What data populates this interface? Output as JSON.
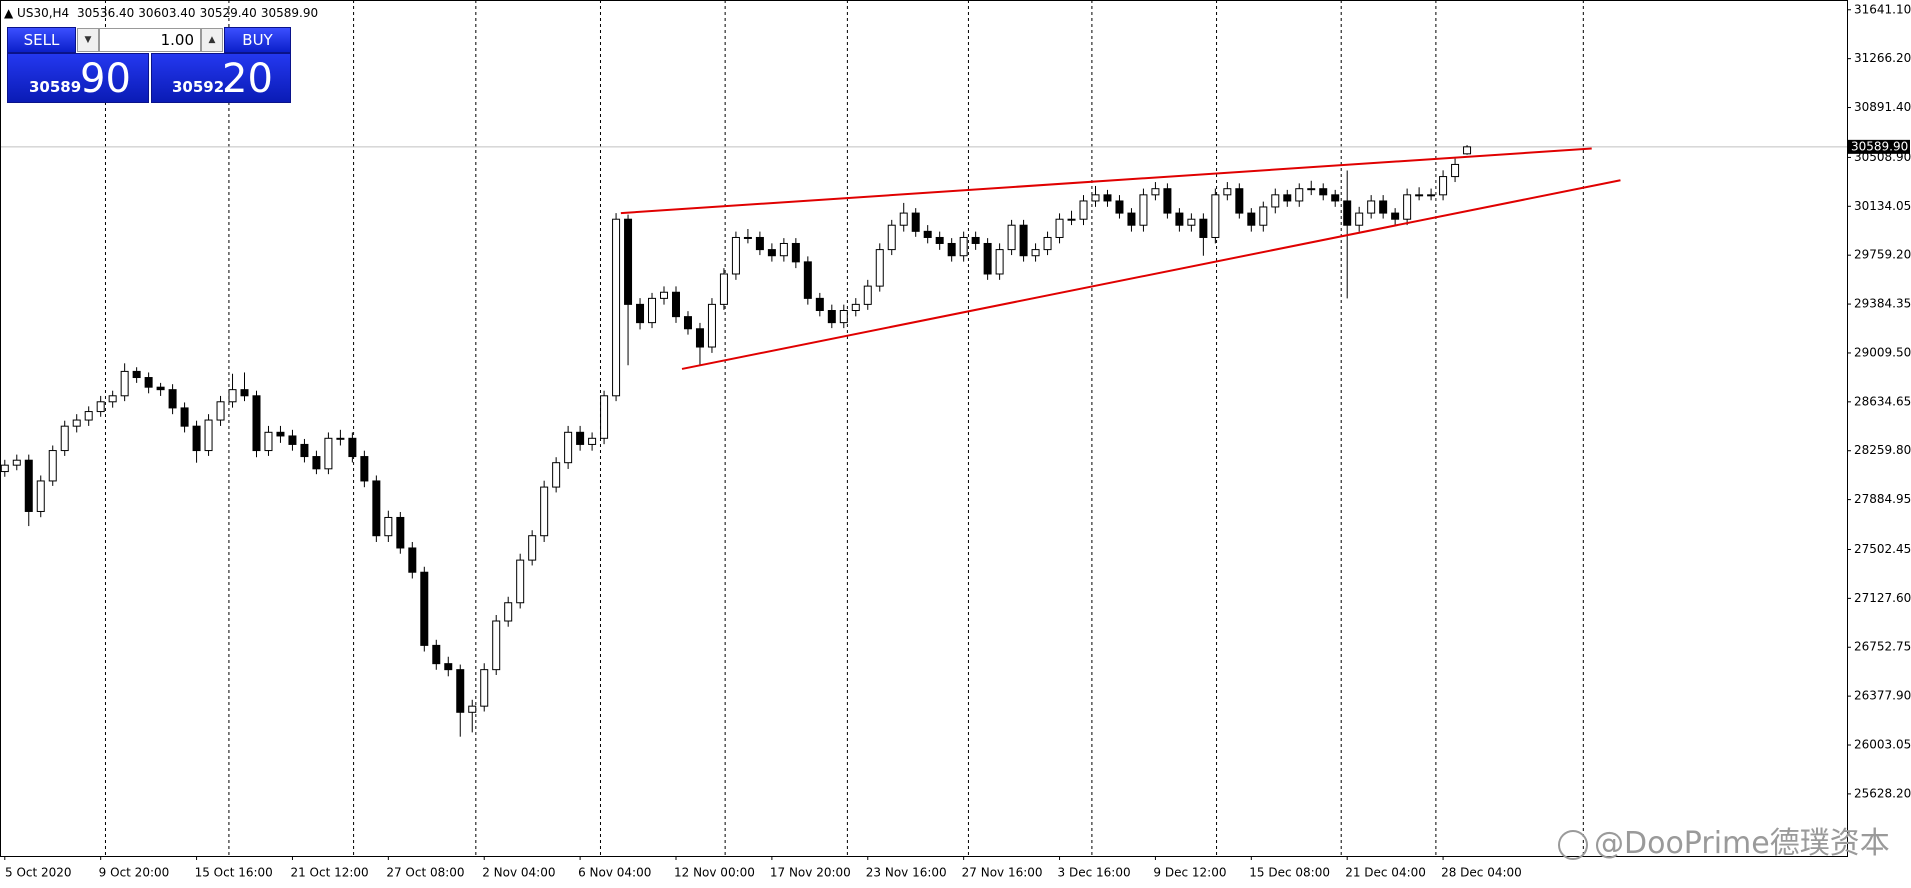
{
  "chart_data": {
    "type": "candlestick",
    "header": {
      "symbol": "US30,H4",
      "ohlc": [
        "30536.40",
        "30603.40",
        "30529.40",
        "30589.90"
      ]
    },
    "trade_panel": {
      "sell": "SELL",
      "buy": "BUY",
      "volume": "1.00",
      "bid_main": "30589",
      "bid_pips": "90",
      "ask_main": "30592",
      "ask_pips": "20"
    },
    "watermark": "@DooPrime德璞资本",
    "up_color": "#ffffff",
    "down_color": "#000000",
    "outline_color": "#000000",
    "categories": [
      "5 Oct 2020",
      null,
      null,
      null,
      null,
      null,
      null,
      null,
      "9 Oct 20:00",
      null,
      null,
      null,
      null,
      null,
      null,
      null,
      "15 Oct 16:00",
      null,
      null,
      null,
      null,
      null,
      null,
      null,
      "21 Oct 12:00",
      null,
      null,
      null,
      null,
      null,
      null,
      null,
      "27 Oct 08:00",
      null,
      null,
      null,
      null,
      null,
      null,
      null,
      "2 Nov 04:00",
      null,
      null,
      null,
      null,
      null,
      null,
      null,
      "6 Nov 04:00",
      null,
      null,
      null,
      null,
      null,
      null,
      null,
      "12 Nov 00:00",
      null,
      null,
      null,
      null,
      null,
      null,
      null,
      "17 Nov 20:00",
      null,
      null,
      null,
      null,
      null,
      null,
      null,
      "23 Nov 16:00",
      null,
      null,
      null,
      null,
      null,
      null,
      null,
      "27 Nov 16:00",
      null,
      null,
      null,
      null,
      null,
      null,
      null,
      "3 Dec 16:00",
      null,
      null,
      null,
      null,
      null,
      null,
      null,
      "9 Dec 12:00",
      null,
      null,
      null,
      null,
      null,
      null,
      null,
      "15 Dec 08:00",
      null,
      null,
      null,
      null,
      null,
      null,
      null,
      "21 Dec 04:00",
      null,
      null,
      null,
      null,
      null,
      null,
      null,
      "28 Dec 04:00",
      null,
      null
    ],
    "open": [
      28100,
      28149,
      28187,
      27794,
      28028,
      28261,
      28448,
      28495,
      28560,
      28635,
      28681,
      28868,
      28821,
      28747,
      28728,
      28588,
      28448,
      28261,
      28495,
      28635,
      28728,
      28681,
      28261,
      28401,
      28373,
      28308,
      28215,
      28121,
      28355,
      28355,
      28215,
      28028,
      27608,
      27748,
      27514,
      27328,
      26767,
      26627,
      26581,
      26254,
      26301,
      26581,
      26954,
      27094,
      27421,
      27608,
      27981,
      28168,
      28401,
      28308,
      28355,
      28681,
      30035,
      29382,
      29242,
      29428,
      29475,
      29288,
      29195,
      29055,
      29382,
      29615,
      29895,
      29895,
      29802,
      29755,
      29849,
      29708,
      29428,
      29335,
      29242,
      29335,
      29382,
      29522,
      29802,
      29989,
      30082,
      29942,
      29895,
      29849,
      29755,
      29895,
      29849,
      29615,
      29802,
      29989,
      29755,
      29802,
      29895,
      30035,
      30035,
      30175,
      30222,
      30175,
      30082,
      29989,
      30222,
      30269,
      30082,
      29989,
      30035,
      29895,
      30222,
      30269,
      30082,
      29989,
      30129,
      30222,
      30175,
      30269,
      30269,
      30222,
      30175,
      29989,
      30082,
      30175,
      30082,
      30035,
      30222,
      30222,
      30222,
      30362,
      30536.4
    ],
    "high": [
      28190,
      28230,
      28230,
      28070,
      28300,
      28490,
      28540,
      28600,
      28680,
      28720,
      28930,
      28900,
      28860,
      28780,
      28770,
      28630,
      28490,
      28540,
      28680,
      28850,
      28860,
      28720,
      28450,
      28450,
      28420,
      28350,
      28260,
      28400,
      28420,
      28400,
      28260,
      28070,
      27800,
      27790,
      27560,
      27370,
      26810,
      26680,
      26620,
      26350,
      26630,
      27000,
      27140,
      27470,
      27650,
      28030,
      28210,
      28450,
      28450,
      28400,
      28720,
      30082,
      30070,
      29430,
      29470,
      29520,
      29520,
      29330,
      29240,
      29430,
      29660,
      29940,
      29960,
      29940,
      29850,
      29890,
      29890,
      29750,
      29470,
      29380,
      29380,
      29430,
      29570,
      29850,
      30030,
      30160,
      30120,
      29990,
      29940,
      29890,
      29940,
      29940,
      29890,
      29850,
      30030,
      30030,
      29850,
      29940,
      30080,
      30100,
      30220,
      30290,
      30260,
      30220,
      30120,
      30270,
      30320,
      30310,
      30120,
      30080,
      30080,
      30270,
      30320,
      30310,
      30120,
      30170,
      30270,
      30260,
      30310,
      30330,
      30310,
      30260,
      30409,
      30130,
      30220,
      30220,
      30120,
      30270,
      30280,
      30270,
      30410,
      30500,
      30603.4
    ],
    "low": [
      28060,
      28110,
      27682,
      27750,
      27990,
      28220,
      28400,
      28450,
      28520,
      28590,
      28640,
      28780,
      28700,
      28680,
      28540,
      28400,
      28168,
      28220,
      28450,
      28590,
      28640,
      28210,
      28220,
      28320,
      28260,
      28170,
      28080,
      28080,
      28300,
      28170,
      27980,
      27560,
      27560,
      27470,
      27280,
      26720,
      26580,
      26530,
      26067,
      26100,
      26260,
      26540,
      26910,
      27050,
      27380,
      27560,
      27940,
      28120,
      28260,
      28260,
      28310,
      28640,
      28915,
      29190,
      29200,
      29380,
      29240,
      29150,
      28915,
      29010,
      29340,
      29570,
      29850,
      29760,
      29710,
      29710,
      29660,
      29380,
      29290,
      29200,
      29200,
      29290,
      29340,
      29480,
      29760,
      29940,
      29900,
      29850,
      29800,
      29710,
      29710,
      29800,
      29570,
      29570,
      29760,
      29710,
      29710,
      29760,
      29850,
      29990,
      29990,
      30130,
      30130,
      30040,
      29940,
      29940,
      30180,
      30040,
      29940,
      29940,
      29755,
      29850,
      30180,
      30040,
      29940,
      29940,
      30080,
      30130,
      30130,
      30220,
      30180,
      30130,
      29428,
      29940,
      30040,
      30040,
      29990,
      29990,
      30180,
      30180,
      30180,
      30320,
      30529.4
    ],
    "close": [
      28149,
      28187,
      27794,
      28028,
      28261,
      28448,
      28495,
      28560,
      28635,
      28681,
      28868,
      28821,
      28747,
      28728,
      28588,
      28448,
      28261,
      28495,
      28635,
      28728,
      28681,
      28261,
      28401,
      28373,
      28308,
      28215,
      28121,
      28355,
      28355,
      28215,
      28028,
      27608,
      27748,
      27514,
      27328,
      26767,
      26627,
      26581,
      26254,
      26301,
      26581,
      26954,
      27094,
      27421,
      27608,
      27981,
      28168,
      28401,
      28308,
      28355,
      28681,
      30035,
      29382,
      29242,
      29428,
      29475,
      29288,
      29195,
      29055,
      29382,
      29615,
      29895,
      29895,
      29802,
      29755,
      29849,
      29708,
      29428,
      29335,
      29242,
      29335,
      29382,
      29522,
      29802,
      29989,
      30082,
      29942,
      29895,
      29849,
      29755,
      29895,
      29849,
      29615,
      29802,
      29989,
      29755,
      29802,
      29895,
      30035,
      30035,
      30175,
      30222,
      30175,
      30082,
      29989,
      30222,
      30269,
      30082,
      29989,
      30035,
      29895,
      30222,
      30269,
      30082,
      29989,
      30129,
      30222,
      30175,
      30269,
      30269,
      30222,
      30175,
      29989,
      30082,
      30175,
      30082,
      30035,
      30222,
      30222,
      30222,
      30362,
      30455,
      30589.9
    ],
    "xlim": [
      -0.4,
      153.7
    ],
    "ylim": [
      25152,
      31716
    ],
    "yticks": [
      {
        "value": 31641.1,
        "label": "31641.10"
      },
      {
        "value": 31266.2,
        "label": "31266.20"
      },
      {
        "value": 30891.4,
        "label": "30891.40"
      },
      {
        "value": 30508.9,
        "label": "30508.90"
      },
      {
        "value": 30134.05,
        "label": "30134.05"
      },
      {
        "value": 29759.2,
        "label": "29759.20"
      },
      {
        "value": 29384.35,
        "label": "29384.35"
      },
      {
        "value": 29009.5,
        "label": "29009.50"
      },
      {
        "value": 28634.65,
        "label": "28634.65"
      },
      {
        "value": 28259.8,
        "label": "28259.80"
      },
      {
        "value": 27884.95,
        "label": "27884.95"
      },
      {
        "value": 27502.45,
        "label": "27502.45"
      },
      {
        "value": 27127.6,
        "label": "27127.60"
      },
      {
        "value": 26752.75,
        "label": "26752.75"
      },
      {
        "value": 26377.9,
        "label": "26377.90"
      },
      {
        "value": 26003.05,
        "label": "26003.05"
      },
      {
        "value": 25628.2,
        "label": "25628.20"
      }
    ],
    "last_price": {
      "value": 30589.9,
      "label": "30589.90"
    },
    "separators": [
      8.4,
      18.7,
      29.1,
      39.3,
      49.7,
      60.1,
      70.3,
      80.4,
      90.7,
      101.1,
      111.5,
      119.4,
      131.7
    ],
    "trendlines": [
      {
        "color": "#e00000",
        "x": [
          51.4,
          132.4
        ],
        "y": [
          30082,
          30577
        ]
      },
      {
        "color": "#e00000",
        "x": [
          56.5,
          134.8
        ],
        "y": [
          28887,
          30334
        ]
      }
    ]
  }
}
